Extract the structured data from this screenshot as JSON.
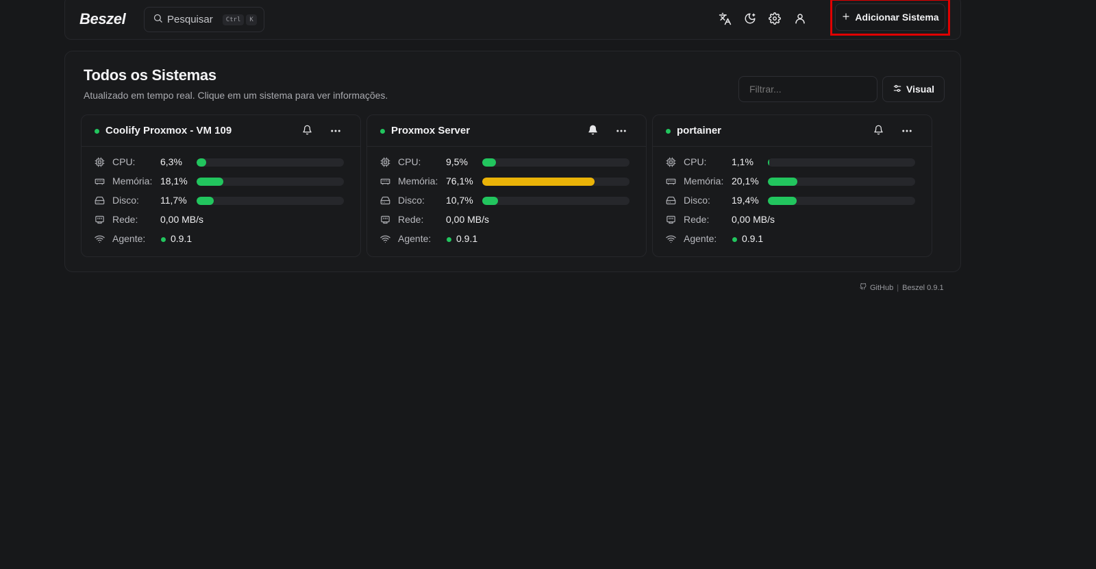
{
  "brand": {
    "name": "Beszel"
  },
  "search": {
    "label": "Pesquisar",
    "kbd": [
      "Ctrl",
      "K"
    ]
  },
  "nav": {
    "icons": [
      "translate-icon",
      "theme-moon-icon",
      "settings-gear-icon",
      "user-icon"
    ],
    "add_button": "Adicionar Sistema"
  },
  "main": {
    "title": "Todos os Sistemas",
    "subtitle": "Atualizado em tempo real. Clique em um sistema para ver informações.",
    "filter_placeholder": "Filtrar...",
    "visual_button": "Visual"
  },
  "labels": {
    "cpu": "CPU:",
    "memory": "Memória:",
    "disk": "Disco:",
    "network": "Rede:",
    "agent": "Agente:"
  },
  "systems": [
    {
      "name": "Coolify Proxmox - VM 109",
      "status_color": "#22c55e",
      "bell_filled": false,
      "cpu": "6,3%",
      "cpu_pct": 6.3,
      "cpu_color": "#22c55e",
      "memory": "18,1%",
      "memory_pct": 18.1,
      "memory_color": "#22c55e",
      "disk": "11,7%",
      "disk_pct": 11.7,
      "disk_color": "#22c55e",
      "network": "0,00 MB/s",
      "agent": "0.9.1"
    },
    {
      "name": "Proxmox Server",
      "status_color": "#22c55e",
      "bell_filled": true,
      "cpu": "9,5%",
      "cpu_pct": 9.5,
      "cpu_color": "#22c55e",
      "memory": "76,1%",
      "memory_pct": 76.1,
      "memory_color": "#eab308",
      "disk": "10,7%",
      "disk_pct": 10.7,
      "disk_color": "#22c55e",
      "network": "0,00 MB/s",
      "agent": "0.9.1"
    },
    {
      "name": "portainer",
      "status_color": "#22c55e",
      "bell_filled": false,
      "cpu": "1,1%",
      "cpu_pct": 1.1,
      "cpu_color": "#22c55e",
      "memory": "20,1%",
      "memory_pct": 20.1,
      "memory_color": "#22c55e",
      "disk": "19,4%",
      "disk_pct": 19.4,
      "disk_color": "#22c55e",
      "network": "0,00 MB/s",
      "agent": "0.9.1"
    }
  ],
  "footer": {
    "github": "GitHub",
    "separator": "|",
    "version": "Beszel 0.9.1"
  }
}
